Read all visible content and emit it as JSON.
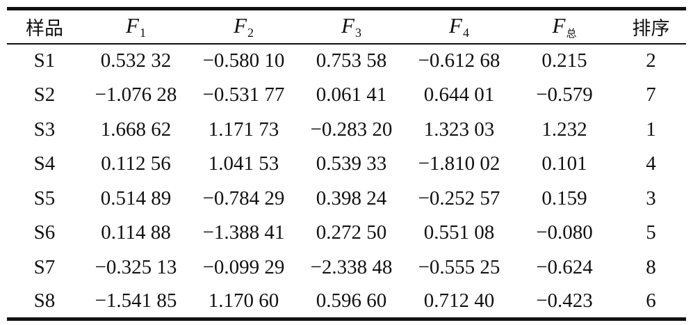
{
  "table": {
    "headers": [
      {
        "text": "样品"
      },
      {
        "var": "F",
        "sub": "1"
      },
      {
        "var": "F",
        "sub": "2"
      },
      {
        "var": "F",
        "sub": "3"
      },
      {
        "var": "F",
        "sub": "4"
      },
      {
        "var": "F",
        "sub": "总"
      },
      {
        "text": "排序"
      }
    ],
    "rows": [
      [
        "S1",
        "0.532 32",
        "−0.580 10",
        "0.753 58",
        "−0.612 68",
        "0.215",
        "2"
      ],
      [
        "S2",
        "−1.076 28",
        "−0.531 77",
        "0.061 41",
        "0.644 01",
        "−0.579",
        "7"
      ],
      [
        "S3",
        "1.668 62",
        "1.171 73",
        "−0.283 20",
        "1.323 03",
        "1.232",
        "1"
      ],
      [
        "S4",
        "0.112 56",
        "1.041 53",
        "0.539 33",
        "−1.810 02",
        "0.101",
        "4"
      ],
      [
        "S5",
        "0.514 89",
        "−0.784 29",
        "0.398 24",
        "−0.252 57",
        "0.159",
        "3"
      ],
      [
        "S6",
        "0.114 88",
        "−1.388 41",
        "0.272 50",
        "0.551 08",
        "−0.080",
        "5"
      ],
      [
        "S7",
        "−0.325 13",
        "−0.099 29",
        "−2.338 48",
        "−0.555 25",
        "−0.624",
        "8"
      ],
      [
        "S8",
        "−1.541 85",
        "1.170 60",
        "0.596 60",
        "0.712 40",
        "−0.423",
        "6"
      ]
    ]
  }
}
